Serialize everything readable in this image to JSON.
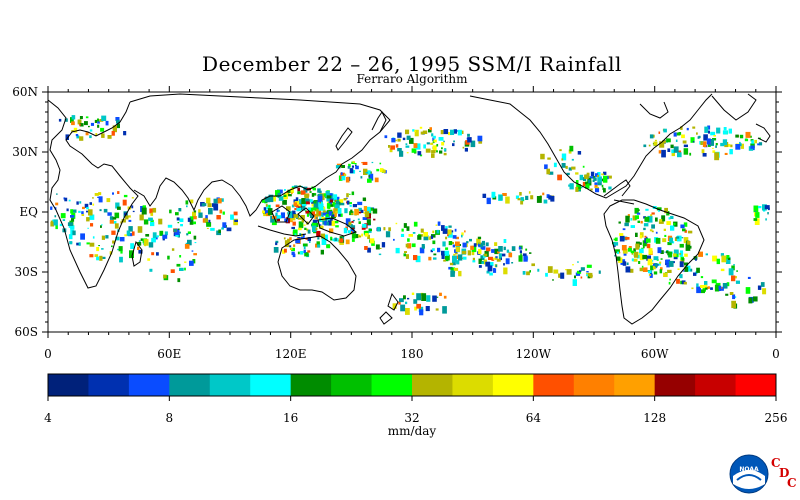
{
  "title": "December 22 – 26, 1995 SSM/I Rainfall",
  "subtitle": "Ferraro Algorithm",
  "map": {
    "lat_labels": [
      "60N",
      "30N",
      "EQ",
      "30S",
      "60S"
    ],
    "lon_labels": [
      "0",
      "60E",
      "120E",
      "180",
      "120W",
      "60W",
      "0"
    ]
  },
  "colorbar": {
    "tick_labels": [
      "4",
      "8",
      "16",
      "32",
      "64",
      "128",
      "256"
    ],
    "units": "mm/day",
    "colors": [
      "#00217a",
      "#0030b0",
      "#0a4cff",
      "#009a9a",
      "#00c8c8",
      "#00ffff",
      "#008c00",
      "#00c000",
      "#00ff00",
      "#b4b400",
      "#dcdc00",
      "#ffff00",
      "#ff5000",
      "#ff8000",
      "#ffa000",
      "#960000",
      "#c80000",
      "#ff0000"
    ]
  },
  "logo": {
    "text": "NOAA",
    "cdc_letters": [
      "C",
      "D",
      "C"
    ]
  }
}
